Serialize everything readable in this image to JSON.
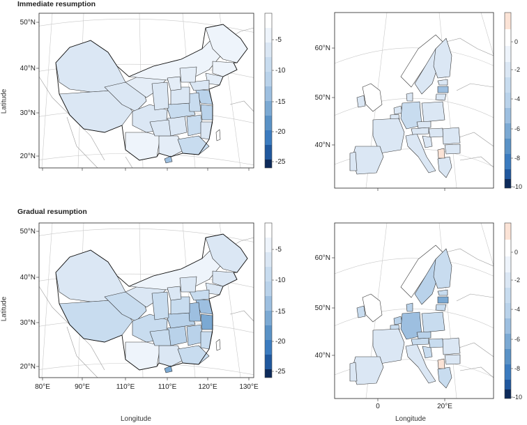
{
  "figure": {
    "panel_titles": {
      "top": "Immediate resumption",
      "bottom": "Gradual resumption"
    },
    "y_axis_label": "Latitude",
    "x_axis_label": "Longitude"
  },
  "china_lat_ticks": [
    "50°N",
    "40°N",
    "30°N",
    "20°N"
  ],
  "china_lon_ticks": [
    "80°E",
    "90°E",
    "110°E",
    "110°E",
    "120°E",
    "130°E"
  ],
  "europe_lat_ticks": [
    "60°N",
    "50°N",
    "40°N"
  ],
  "europe_lon_ticks": [
    "0",
    "20°E"
  ],
  "china_colorbar_ticks": [
    "-5",
    "-10",
    "-15",
    "-20",
    "-25"
  ],
  "europe_colorbar_ticks": [
    "0",
    "-2",
    "-4",
    "-6",
    "-8",
    "-10"
  ],
  "colors": {
    "very_light_blue": "#eef4fb",
    "light_blue": "#dbe7f4",
    "mid_blue": "#b9d2ea",
    "blue": "#9dbfe0",
    "dark_blue": "#3b7bbf",
    "navy": "#0d2a5a",
    "peach": "#fbe3d6"
  }
}
